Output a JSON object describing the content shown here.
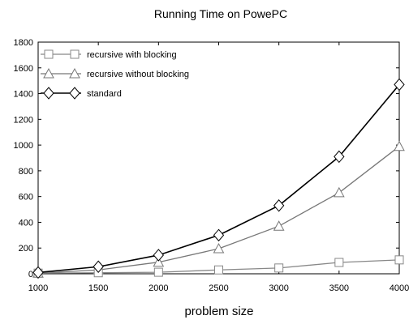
{
  "chart_data": {
    "type": "line",
    "title": "Running Time on PowePC",
    "xlabel": "problem size",
    "ylabel": "",
    "x": [
      1000,
      1500,
      2000,
      2500,
      3000,
      3500,
      4000
    ],
    "xlim": [
      1000,
      4000
    ],
    "ylim": [
      0,
      1800
    ],
    "xticks": [
      1000,
      1500,
      2000,
      2500,
      3000,
      3500,
      4000
    ],
    "yticks": [
      0,
      200,
      400,
      600,
      800,
      1000,
      1200,
      1400,
      1600,
      1800
    ],
    "grid": false,
    "legend_position": "top-left",
    "series": [
      {
        "name": "recursive with blocking",
        "marker": "square",
        "color": "#888888",
        "values": [
          5,
          8,
          12,
          30,
          45,
          88,
          108
        ]
      },
      {
        "name": "recursive without blocking",
        "marker": "triangle",
        "color": "#777777",
        "values": [
          5,
          30,
          90,
          195,
          370,
          630,
          990
        ]
      },
      {
        "name": "standard",
        "marker": "diamond",
        "color": "#000000",
        "values": [
          10,
          55,
          145,
          300,
          530,
          910,
          1470
        ]
      }
    ]
  }
}
